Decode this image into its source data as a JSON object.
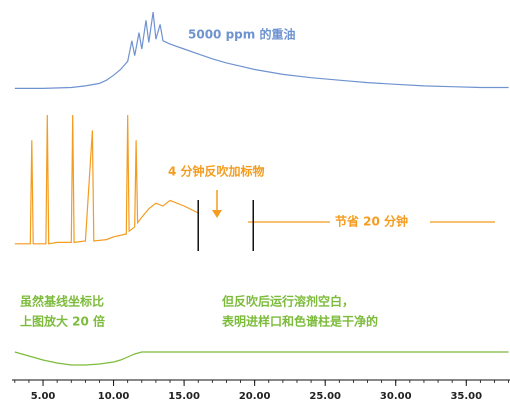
{
  "charts": [
    {
      "type": "line",
      "color": "#6f93cf",
      "xlim": [
        2.8,
        38.1
      ],
      "ylim": [
        0,
        100
      ],
      "annotations": [
        "5000 ppm 的重油"
      ],
      "x": [
        3,
        5,
        7,
        8,
        9,
        9.5,
        10,
        10.5,
        11,
        11.3,
        11.5,
        11.8,
        12,
        12.3,
        12.5,
        12.8,
        13,
        13.3,
        13.5,
        14,
        15,
        16,
        17,
        18,
        19,
        20,
        22,
        24,
        26,
        28,
        30,
        32,
        34,
        36,
        38
      ],
      "values": [
        2,
        2,
        3,
        5,
        8,
        12,
        18,
        25,
        35,
        60,
        42,
        70,
        50,
        85,
        58,
        95,
        62,
        80,
        60,
        56,
        50,
        44,
        38,
        33,
        29,
        25,
        19,
        15,
        12,
        9,
        7,
        5,
        4,
        3,
        3
      ]
    },
    {
      "type": "line",
      "color": "#f39c1f",
      "xlim": [
        2.8,
        38.1
      ],
      "ylim": [
        0,
        100
      ],
      "annotations": [
        "4 分钟反吹加标物",
        "节省 20 分钟"
      ],
      "markers": [
        16,
        19.9
      ],
      "x": [
        3,
        4.1,
        4.2,
        4.3,
        5.2,
        5.3,
        5.4,
        6,
        7,
        7.1,
        7.2,
        8,
        8.5,
        8.6,
        9.5,
        10,
        10.9,
        11,
        11.1,
        11.5,
        11.6,
        11.7,
        12,
        12.5,
        13,
        13.5,
        14,
        15,
        16
      ],
      "values": [
        3,
        3,
        77,
        3,
        3,
        95,
        3,
        4,
        4,
        95,
        4,
        5,
        84,
        5,
        6,
        8,
        10,
        95,
        12,
        15,
        77,
        18,
        22,
        28,
        32,
        30,
        34,
        30,
        25
      ]
    },
    {
      "type": "line",
      "color": "#7dbb3c",
      "xlim": [
        2.8,
        38.1
      ],
      "ylim": [
        0,
        100
      ],
      "annotations": [
        "虽然基线坐标比",
        "上图放大 20 倍",
        "但反吹后运行溶剂空白，",
        "表明进样口和色谱柱是干净的"
      ],
      "x": [
        3,
        4,
        5,
        6,
        7,
        8,
        9,
        10,
        10.5,
        11,
        11.5,
        12,
        15,
        20,
        25,
        30,
        35,
        38
      ],
      "values": [
        28,
        24,
        20,
        17,
        15,
        15,
        16,
        18,
        20,
        23,
        26,
        28,
        28,
        28,
        28,
        28,
        28,
        28
      ],
      "xticks": [
        {
          "value": 5,
          "label": "5.00"
        },
        {
          "value": 10,
          "label": "10.00"
        },
        {
          "value": 15,
          "label": "15.00"
        },
        {
          "value": 20,
          "label": "20.00"
        },
        {
          "value": 25,
          "label": "25.00"
        },
        {
          "value": 30,
          "label": "30.00"
        },
        {
          "value": 35,
          "label": "35.00"
        }
      ]
    }
  ]
}
